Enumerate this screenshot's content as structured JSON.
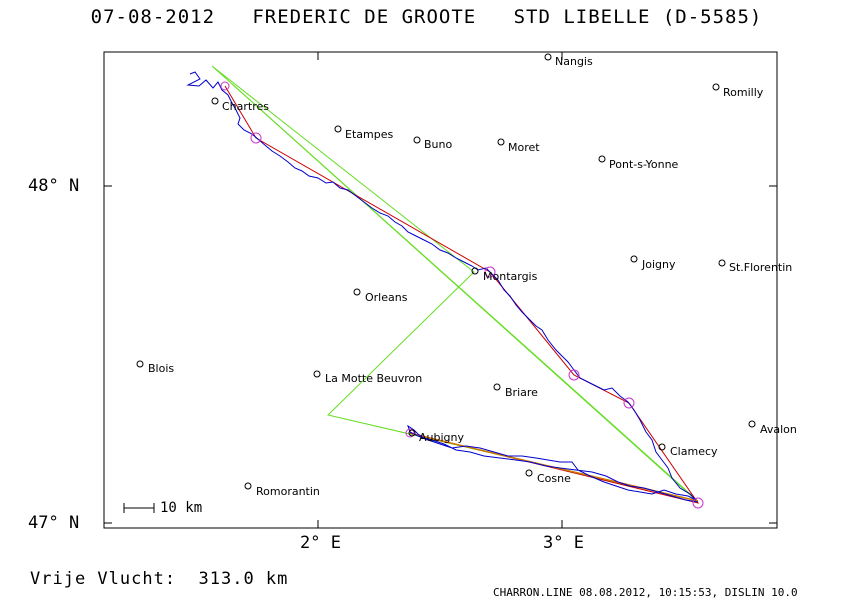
{
  "title": "07-08-2012   FREDERIC DE GROOTE   STD LIBELLE (D-5585)",
  "axes": {
    "lat_labels": [
      "48° N",
      "47° N"
    ],
    "lon_labels": [
      "2° E",
      "3° E"
    ]
  },
  "cities": [
    {
      "name": "Nangis"
    },
    {
      "name": "Romilly"
    },
    {
      "name": "Chartres"
    },
    {
      "name": "Etampes"
    },
    {
      "name": "Buno"
    },
    {
      "name": "Moret"
    },
    {
      "name": "Pont-s-Yonne"
    },
    {
      "name": "Montargis"
    },
    {
      "name": "Joigny"
    },
    {
      "name": "St.Florentin"
    },
    {
      "name": "Orleans"
    },
    {
      "name": "Blois"
    },
    {
      "name": "La Motte Beuvron"
    },
    {
      "name": "Briare"
    },
    {
      "name": "Avalon"
    },
    {
      "name": "Aubigny"
    },
    {
      "name": "Clamecy"
    },
    {
      "name": "Cosne"
    },
    {
      "name": "Romorantin"
    }
  ],
  "scale_label": "10 km",
  "free_flight": "Vrije Vlucht:  313.0 km",
  "footer": "CHARRON.LINE 08.08.2012, 10:15:53, DISLIN 10.0",
  "colors": {
    "track": "#0000cc",
    "task": "#cc0000",
    "triangle": "#66dd22",
    "turnpoint": "#cc33cc",
    "orange": "#cc7a00"
  }
}
